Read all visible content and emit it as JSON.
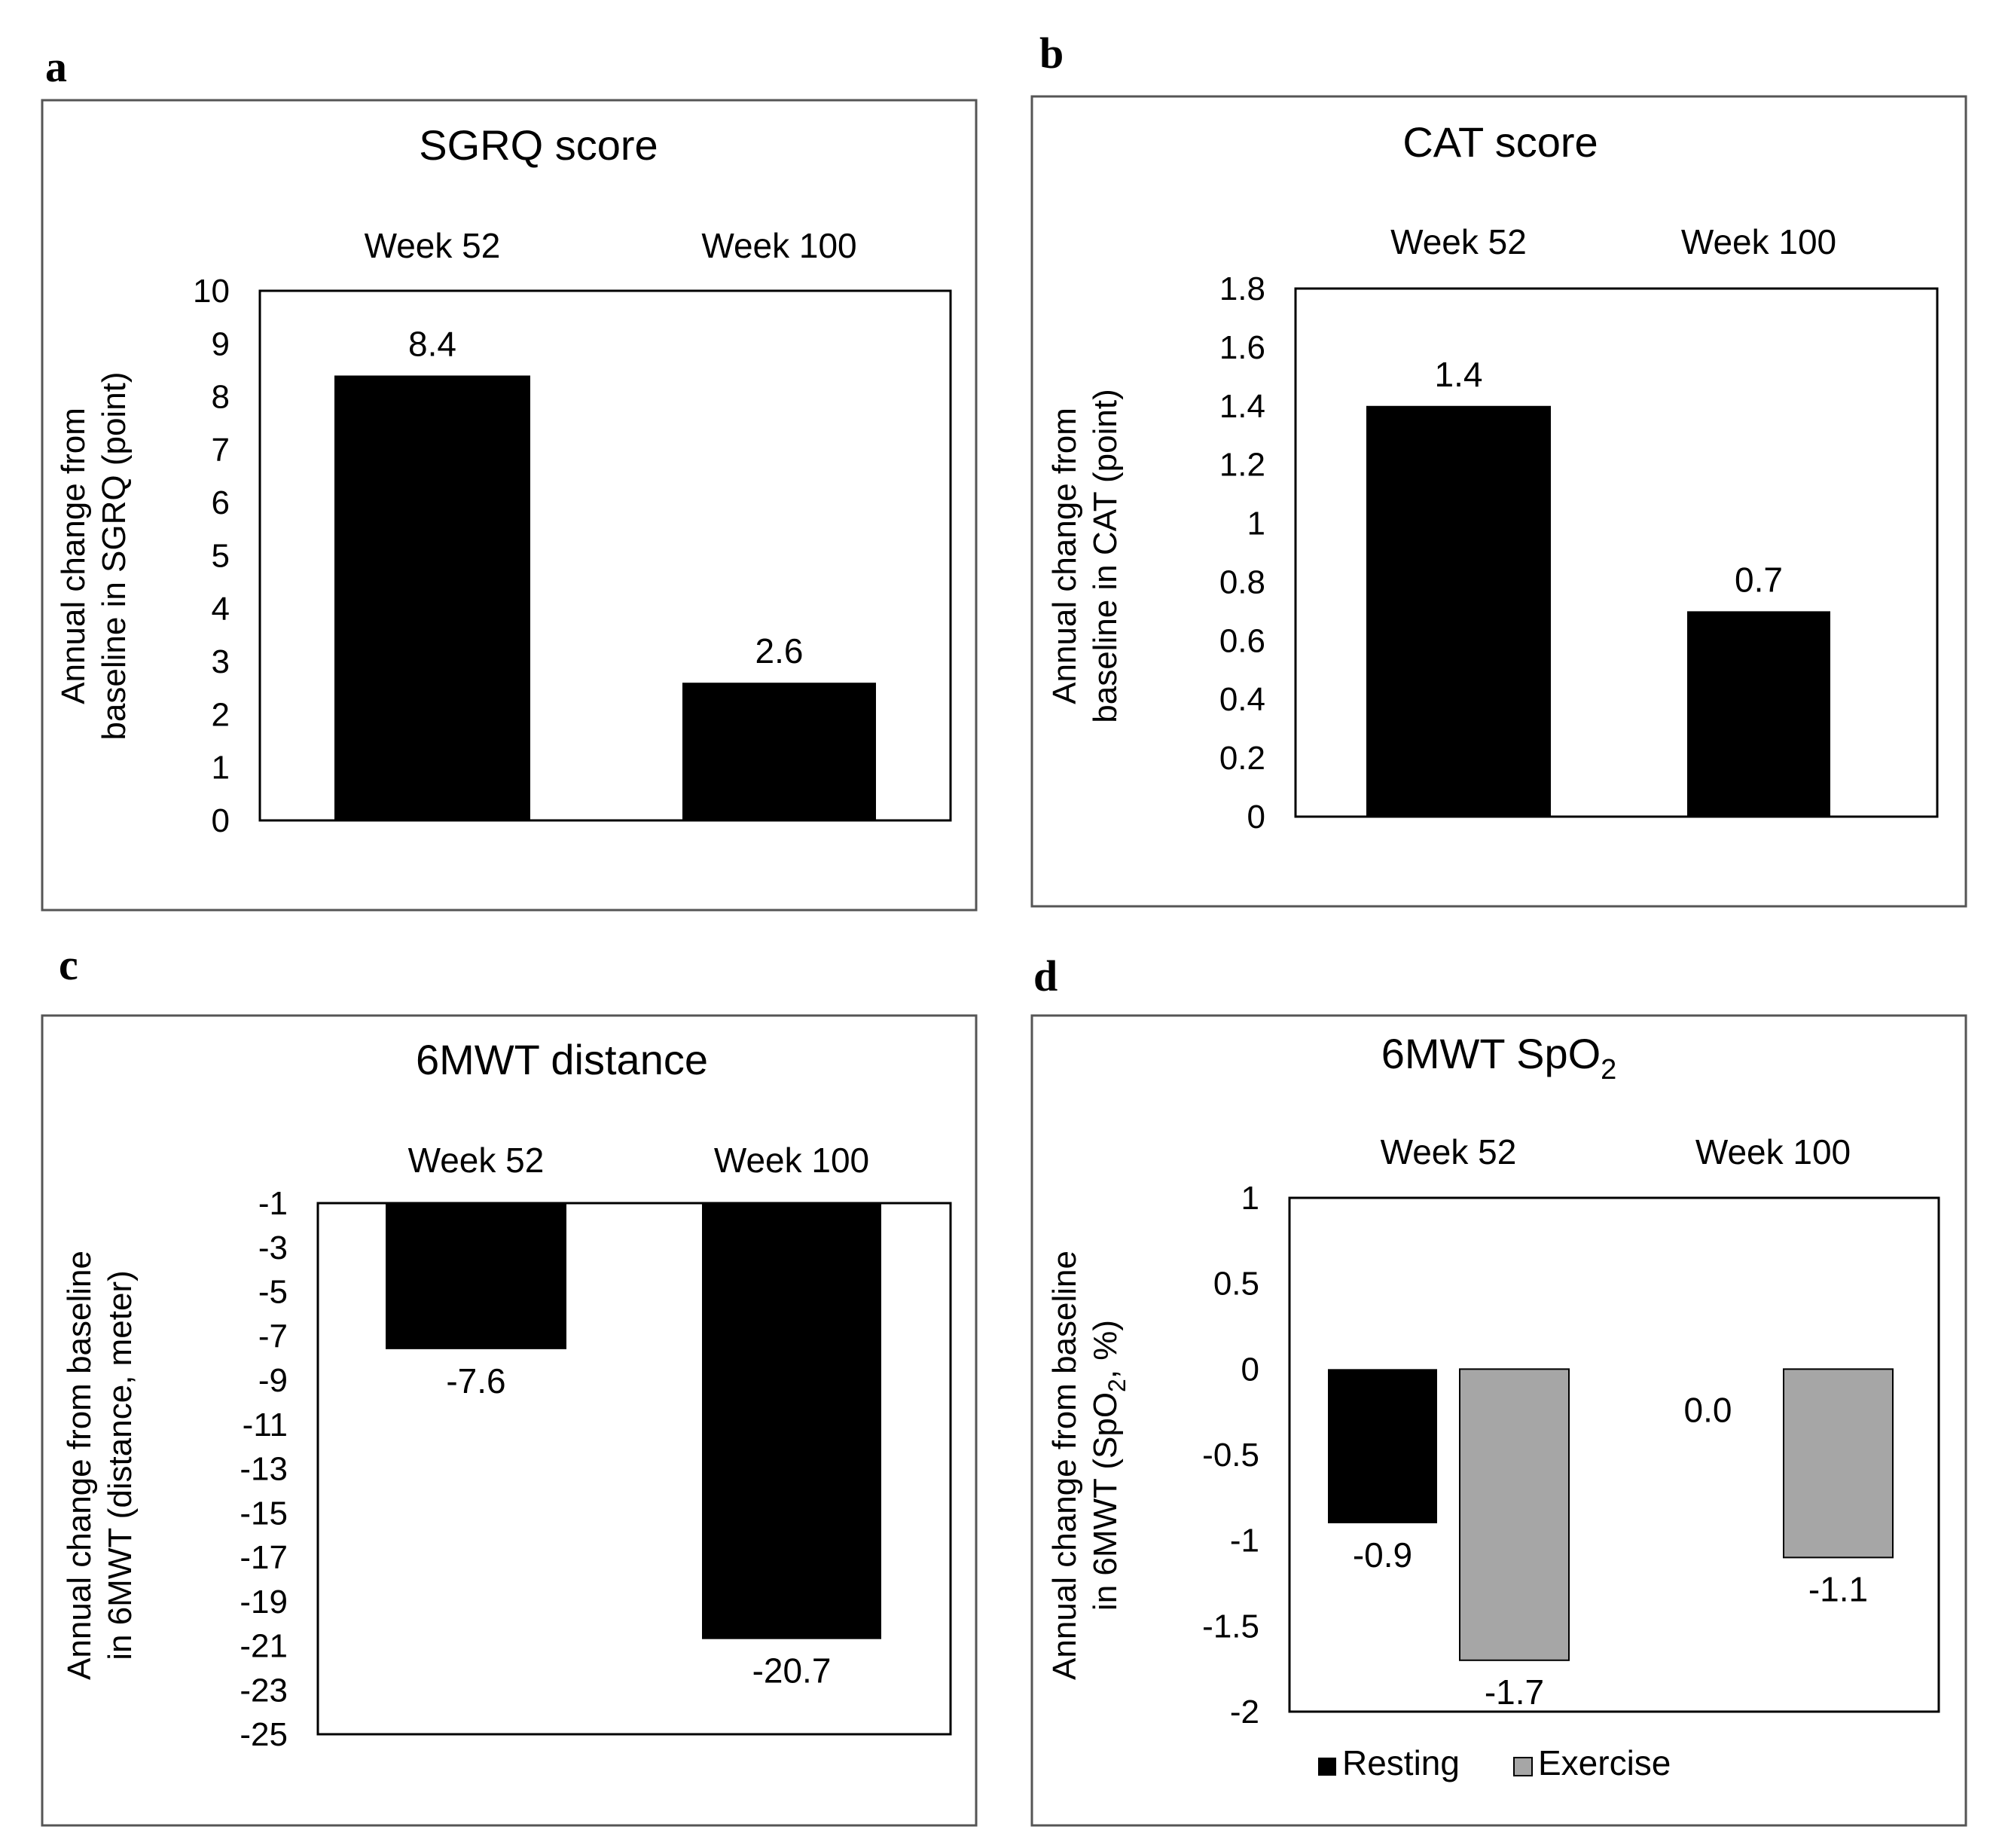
{
  "colors": {
    "resting": "#000000",
    "exercise": "#a6a6a6",
    "background": "#ffffff"
  },
  "chart_data": [
    {
      "panel": "a",
      "type": "bar",
      "title": "SGRQ score",
      "categories": [
        "Week 52",
        "Week 100"
      ],
      "series": [
        {
          "name": "",
          "values": [
            8.4,
            2.6
          ],
          "labels": [
            "8.4",
            "2.6"
          ]
        }
      ],
      "ylabel_lines": [
        "Annual change from",
        "baseline in SGRQ (point)"
      ],
      "ylim": [
        0,
        10
      ],
      "ticks": [
        0,
        1,
        2,
        3,
        4,
        5,
        6,
        7,
        8,
        9,
        10
      ],
      "tick_labels": [
        "0",
        "1",
        "2",
        "3",
        "4",
        "5",
        "6",
        "7",
        "8",
        "9",
        "10"
      ],
      "legend": null
    },
    {
      "panel": "b",
      "type": "bar",
      "title": "CAT score",
      "categories": [
        "Week 52",
        "Week 100"
      ],
      "series": [
        {
          "name": "",
          "values": [
            1.4,
            0.7
          ],
          "labels": [
            "1.4",
            "0.7"
          ]
        }
      ],
      "ylabel_lines": [
        "Annual change from",
        "baseline in CAT (point)"
      ],
      "ylim": [
        0,
        1.8
      ],
      "ticks": [
        0,
        0.2,
        0.4,
        0.6,
        0.8,
        1,
        1.2,
        1.4,
        1.6,
        1.8
      ],
      "tick_labels": [
        "0",
        "0.2",
        "0.4",
        "0.6",
        "0.8",
        "1",
        "1.2",
        "1.4",
        "1.6",
        "1.8"
      ],
      "legend": null
    },
    {
      "panel": "c",
      "type": "bar",
      "title": "6MWT distance",
      "categories": [
        "Week 52",
        "Week 100"
      ],
      "series": [
        {
          "name": "",
          "values": [
            -7.6,
            -20.7
          ],
          "labels": [
            "-7.6",
            "-20.7"
          ]
        }
      ],
      "ylabel_lines": [
        "Annual change from baseline",
        "in 6MWT (distance, meter)"
      ],
      "ylim": [
        -25,
        -1
      ],
      "ticks": [
        -25,
        -23,
        -21,
        -19,
        -17,
        -15,
        -13,
        -11,
        -9,
        -7,
        -5,
        -3,
        -1
      ],
      "tick_labels": [
        "-25",
        "-23",
        "-21",
        "-19",
        "-17",
        "-15",
        "-13",
        "-11",
        "-9",
        "-7",
        "-5",
        "-3",
        "-1"
      ],
      "legend": null
    },
    {
      "panel": "d",
      "type": "bar",
      "title": "6MWT SpO",
      "title_sub": "2",
      "categories": [
        "Week 52",
        "Week 100"
      ],
      "series": [
        {
          "name": "Resting",
          "values": [
            -0.9,
            0.0
          ],
          "labels": [
            "-0.9",
            "0.0"
          ]
        },
        {
          "name": "Exercise",
          "values": [
            -1.7,
            -1.1
          ],
          "labels": [
            "-1.7",
            "-1.1"
          ]
        }
      ],
      "ylabel_lines": [
        "Annual change from baseline",
        "in 6MWT (SpO",
        "2",
        ", %)"
      ],
      "ylim": [
        -2,
        1
      ],
      "ticks": [
        -2,
        -1.5,
        -1,
        -0.5,
        0,
        0.5,
        1
      ],
      "tick_labels": [
        "-2",
        "-1.5",
        "-1",
        "-0.5",
        "0",
        "0.5",
        "1"
      ],
      "legend": "bottom-center"
    }
  ]
}
